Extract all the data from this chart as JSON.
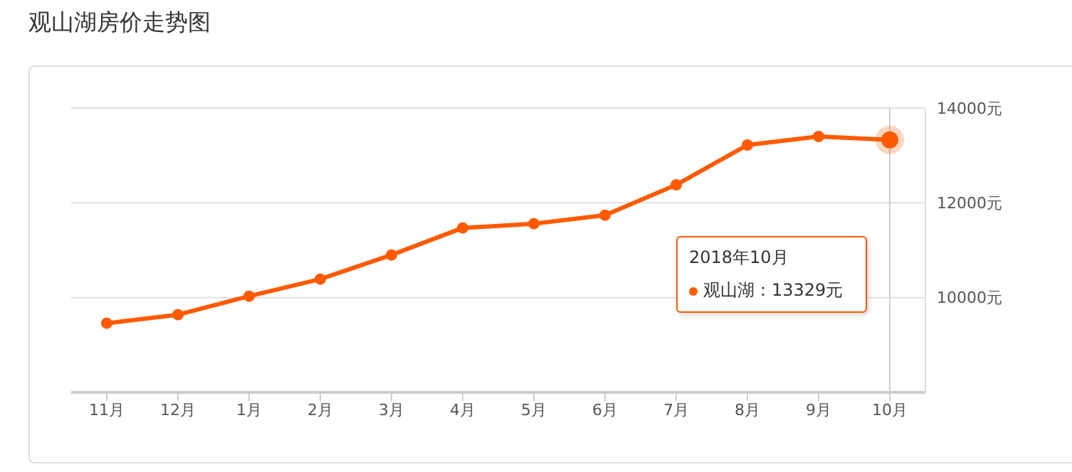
{
  "chart_data": {
    "type": "line",
    "title": "观山湖房价走势图",
    "categories": [
      "11月",
      "12月",
      "1月",
      "2月",
      "3月",
      "4月",
      "5月",
      "6月",
      "7月",
      "8月",
      "9月",
      "10月"
    ],
    "series": [
      {
        "color": "#ff5a00",
        "values": [
          9460,
          9640,
          10030,
          10390,
          10900,
          11470,
          11560,
          11740,
          12380,
          13220,
          13400,
          13329
        ]
      }
    ],
    "ylim": [
      8000,
      14000
    ],
    "yticks": [
      {
        "value": 10000,
        "label": "10000元"
      },
      {
        "value": 12000,
        "label": "12000元"
      },
      {
        "value": 14000,
        "label": "14000元"
      }
    ],
    "grid": "y",
    "marker": "circle",
    "line_style": "solid",
    "ref_lines": [
      {
        "axis": "x",
        "value": "10月",
        "color": "#cccccc"
      }
    ],
    "annotations": [
      "2018年10月",
      "观山湖：13329元"
    ]
  }
}
